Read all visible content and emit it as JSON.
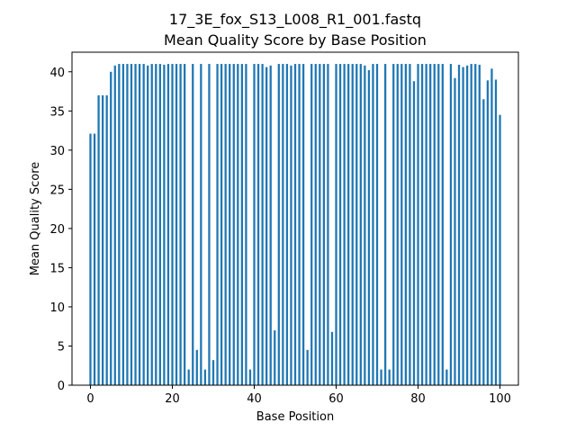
{
  "chart_data": {
    "type": "bar",
    "title": "17_3E_fox_S13_L008_R1_001.fastq",
    "subtitle": "Mean Quality Score by Base Position",
    "xlabel": "Base Position",
    "ylabel": "Mean Quality Score",
    "xlim": [
      -4.5,
      104.5
    ],
    "ylim": [
      0,
      42.5
    ],
    "xticks": [
      0,
      20,
      40,
      60,
      80,
      100
    ],
    "yticks": [
      0,
      5,
      10,
      15,
      20,
      25,
      30,
      35,
      40
    ],
    "bar_color": "#1f77b4",
    "bar_width": 0.5,
    "x": [
      0,
      1,
      2,
      3,
      4,
      5,
      6,
      7,
      8,
      9,
      10,
      11,
      12,
      13,
      14,
      15,
      16,
      17,
      18,
      19,
      20,
      21,
      22,
      23,
      24,
      25,
      26,
      27,
      28,
      29,
      30,
      31,
      32,
      33,
      34,
      35,
      36,
      37,
      38,
      39,
      40,
      41,
      42,
      43,
      44,
      45,
      46,
      47,
      48,
      49,
      50,
      51,
      52,
      53,
      54,
      55,
      56,
      57,
      58,
      59,
      60,
      61,
      62,
      63,
      64,
      65,
      66,
      67,
      68,
      69,
      70,
      71,
      72,
      73,
      74,
      75,
      76,
      77,
      78,
      79,
      80,
      81,
      82,
      83,
      84,
      85,
      86,
      87,
      88,
      89,
      90,
      91,
      92,
      93,
      94,
      95,
      96,
      97,
      98,
      99,
      100
    ],
    "values": [
      32.1,
      32.1,
      37.0,
      37.0,
      37.0,
      40.0,
      40.8,
      41.0,
      41.0,
      41.0,
      41.0,
      41.0,
      41.0,
      41.0,
      40.8,
      41.0,
      41.0,
      41.0,
      40.9,
      41.0,
      41.0,
      41.0,
      41.0,
      41.0,
      2.0,
      41.0,
      4.5,
      41.0,
      2.0,
      41.0,
      3.2,
      41.0,
      41.0,
      41.0,
      41.0,
      41.0,
      41.0,
      41.0,
      41.0,
      2.0,
      41.0,
      41.0,
      41.0,
      40.6,
      40.8,
      7.0,
      41.0,
      41.0,
      41.0,
      40.8,
      41.0,
      41.0,
      41.0,
      4.5,
      41.0,
      41.0,
      41.0,
      41.0,
      41.0,
      6.8,
      41.0,
      41.0,
      41.0,
      41.0,
      41.0,
      41.0,
      41.0,
      40.8,
      40.2,
      41.0,
      41.0,
      2.0,
      41.0,
      2.0,
      41.0,
      41.0,
      41.0,
      41.0,
      41.0,
      38.8,
      41.0,
      41.0,
      41.0,
      41.0,
      41.0,
      41.0,
      41.0,
      2.0,
      41.0,
      39.2,
      40.9,
      40.6,
      40.8,
      41.0,
      41.0,
      40.9,
      36.5,
      38.9,
      40.4,
      39.0,
      34.5
    ]
  }
}
